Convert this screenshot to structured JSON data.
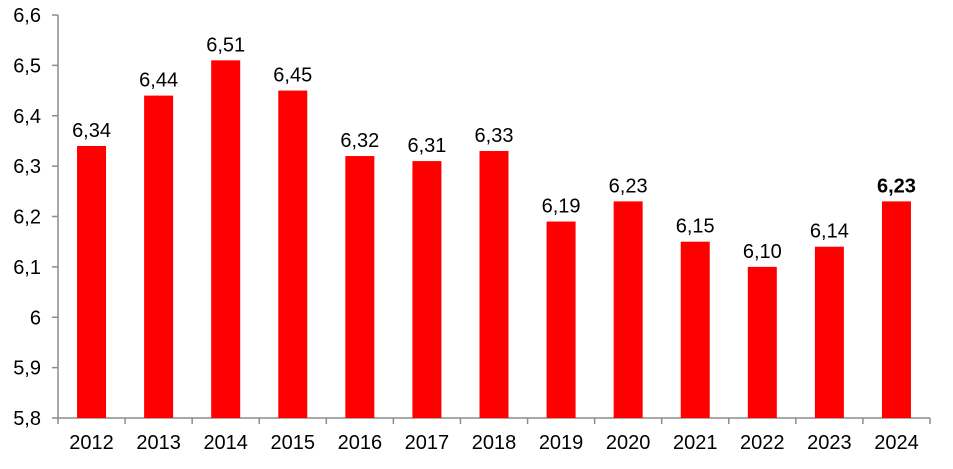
{
  "chart_data": {
    "type": "bar",
    "title": "",
    "xlabel": "",
    "ylabel": "",
    "categories": [
      "2012",
      "2013",
      "2014",
      "2015",
      "2016",
      "2017",
      "2018",
      "2019",
      "2020",
      "2021",
      "2022",
      "2023",
      "2024"
    ],
    "values": [
      6.34,
      6.44,
      6.51,
      6.45,
      6.32,
      6.31,
      6.33,
      6.19,
      6.23,
      6.15,
      6.1,
      6.14,
      6.23
    ],
    "value_labels": [
      "6,34",
      "6,44",
      "6,51",
      "6,45",
      "6,32",
      "6,31",
      "6,33",
      "6,19",
      "6,23",
      "6,15",
      "6,10",
      "6,14",
      "6,23"
    ],
    "bold_value_label_index": 12,
    "y_tick_values": [
      6.6,
      6.5,
      6.4,
      6.3,
      6.2,
      6.1,
      6.0,
      5.9,
      5.8
    ],
    "y_tick_labels": [
      "6,6",
      "6,5",
      "6,4",
      "6,3",
      "6,2",
      "6,1",
      "6",
      "5,9",
      "5,8"
    ],
    "ylim": [
      5.8,
      6.6
    ],
    "grid": false,
    "legend": false,
    "bar_color": "#FF0000",
    "axis_color": "#8C8C8C",
    "text_color": "#000000"
  }
}
